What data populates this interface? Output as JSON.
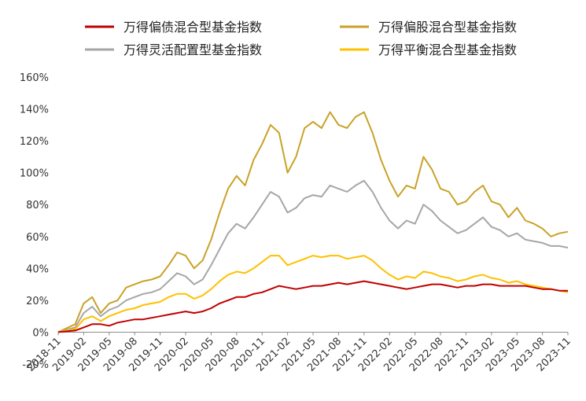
{
  "chart_data": {
    "type": "line",
    "title": "",
    "xlabel": "",
    "ylabel": "",
    "x": [
      "2018-11",
      "2019-01",
      "2019-02",
      "2019-03",
      "2019-04",
      "2019-05",
      "2019-06",
      "2019-07",
      "2019-08",
      "2019-09",
      "2019-10",
      "2019-11",
      "2019-12",
      "2020-01",
      "2020-02",
      "2020-03",
      "2020-04",
      "2020-05",
      "2020-06",
      "2020-07",
      "2020-08",
      "2020-09",
      "2020-10",
      "2020-11",
      "2020-12",
      "2021-01",
      "2021-02",
      "2021-03",
      "2021-04",
      "2021-05",
      "2021-06",
      "2021-07",
      "2021-08",
      "2021-09",
      "2021-10",
      "2021-11",
      "2021-12",
      "2022-01",
      "2022-02",
      "2022-03",
      "2022-04",
      "2022-05",
      "2022-06",
      "2022-07",
      "2022-08",
      "2022-09",
      "2022-10",
      "2022-11",
      "2022-12",
      "2023-01",
      "2023-02",
      "2023-03",
      "2023-04",
      "2023-05",
      "2023-06",
      "2023-07",
      "2023-08",
      "2023-09",
      "2023-10",
      "2023-11"
    ],
    "x_ticks": [
      "2018-11",
      "2019-02",
      "2019-05",
      "2019-08",
      "2019-11",
      "2020-02",
      "2020-05",
      "2020-08",
      "2020-11",
      "2021-02",
      "2021-05",
      "2021-08",
      "2021-11",
      "2022-02",
      "2022-05",
      "2022-08",
      "2022-11",
      "2023-02",
      "2023-05",
      "2023-08",
      "2023-11"
    ],
    "y_ticks": [
      "-20%",
      "0%",
      "20%",
      "40%",
      "60%",
      "80%",
      "100%",
      "120%",
      "140%",
      "160%"
    ],
    "ylim": [
      -20,
      160
    ],
    "legend_position": "top",
    "series": [
      {
        "name": "万得偏债混合型基金指数",
        "color": "#c00000",
        "values": [
          0,
          1,
          3,
          5,
          5,
          4,
          6,
          7,
          8,
          8,
          9,
          10,
          11,
          12,
          13,
          12,
          13,
          15,
          18,
          20,
          22,
          22,
          24,
          25,
          27,
          29,
          28,
          27,
          28,
          29,
          29,
          30,
          31,
          30,
          31,
          32,
          31,
          30,
          29,
          28,
          27,
          28,
          29,
          30,
          30,
          29,
          28,
          29,
          29,
          30,
          30,
          29,
          29,
          29,
          29,
          28,
          27,
          27,
          26,
          26
        ]
      },
      {
        "name": "万得偏股混合型基金指数",
        "color": "#c9a227",
        "values": [
          0,
          5,
          18,
          22,
          12,
          18,
          20,
          28,
          30,
          32,
          33,
          35,
          42,
          50,
          48,
          40,
          45,
          58,
          75,
          90,
          98,
          92,
          108,
          118,
          130,
          125,
          100,
          110,
          128,
          132,
          128,
          138,
          130,
          128,
          135,
          138,
          125,
          108,
          95,
          85,
          92,
          90,
          110,
          102,
          90,
          88,
          80,
          82,
          88,
          92,
          82,
          80,
          72,
          78,
          70,
          68,
          65,
          60,
          62,
          63
        ]
      },
      {
        "name": "万得灵活配置型基金指数",
        "color": "#a6a6a6",
        "values": [
          0,
          3,
          12,
          16,
          10,
          14,
          16,
          20,
          22,
          24,
          25,
          27,
          32,
          37,
          35,
          30,
          33,
          42,
          52,
          62,
          68,
          65,
          72,
          80,
          88,
          85,
          75,
          78,
          84,
          86,
          85,
          92,
          90,
          88,
          92,
          95,
          88,
          78,
          70,
          65,
          70,
          68,
          80,
          76,
          70,
          66,
          62,
          64,
          68,
          72,
          66,
          64,
          60,
          62,
          58,
          57,
          56,
          54,
          54,
          53
        ]
      },
      {
        "name": "万得平衡混合型基金指数",
        "color": "#ffc000",
        "values": [
          0,
          2,
          8,
          10,
          7,
          10,
          12,
          14,
          15,
          17,
          18,
          19,
          22,
          24,
          24,
          21,
          23,
          27,
          32,
          36,
          38,
          37,
          40,
          44,
          48,
          48,
          42,
          44,
          46,
          48,
          47,
          48,
          48,
          46,
          47,
          48,
          45,
          40,
          36,
          33,
          35,
          34,
          38,
          37,
          35,
          34,
          32,
          33,
          35,
          36,
          34,
          33,
          31,
          32,
          30,
          29,
          28,
          27,
          26,
          25
        ]
      }
    ]
  }
}
